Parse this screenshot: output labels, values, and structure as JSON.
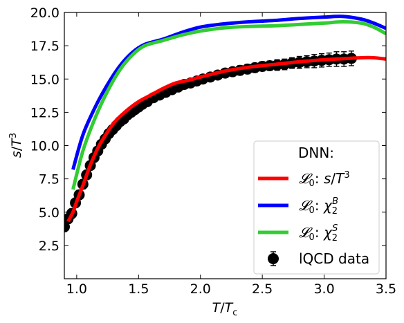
{
  "chart_data": {
    "type": "line",
    "xlabel": "T/T_c",
    "ylabel": "s/T^3",
    "xlim": [
      0.9,
      3.5
    ],
    "ylim": [
      0.0,
      20.0
    ],
    "xticks": [
      1.0,
      1.5,
      2.0,
      2.5,
      3.0,
      3.5
    ],
    "xtick_labels": [
      "1.0",
      "1.5",
      "2.0",
      "2.5",
      "3.0",
      "3.5"
    ],
    "yticks": [
      2.5,
      5.0,
      7.5,
      10.0,
      12.5,
      15.0,
      17.5,
      20.0
    ],
    "ytick_labels": [
      "2.5",
      "5.0",
      "7.5",
      "10.0",
      "12.5",
      "15.0",
      "17.5",
      "20.0"
    ],
    "grid": false,
    "legend": {
      "title": "DNN:",
      "position": "bottom-right",
      "entries": [
        {
          "label": "𝓛0: s/T3",
          "series": "L0: s/T^3"
        },
        {
          "label": "𝓛0: χ2B",
          "series": "L0: chi2^B"
        },
        {
          "label": "𝓛0: χ2S",
          "series": "L0: chi2^S"
        },
        {
          "label": "lQCD data",
          "series": "lQCD data"
        }
      ]
    },
    "series": [
      {
        "name": "L0: s/T^3",
        "color": "#ff0000",
        "x": [
          0.93,
          0.97,
          1.0,
          1.05,
          1.1,
          1.15,
          1.2,
          1.3,
          1.4,
          1.5,
          1.6,
          1.7,
          1.8,
          1.9,
          2.0,
          2.2,
          2.4,
          2.6,
          2.8,
          3.0,
          3.2,
          3.3,
          3.4,
          3.5
        ],
        "y": [
          4.3,
          5.0,
          5.8,
          7.0,
          8.3,
          9.4,
          10.3,
          11.7,
          12.6,
          13.3,
          13.8,
          14.3,
          14.7,
          14.9,
          15.15,
          15.6,
          15.9,
          16.1,
          16.3,
          16.45,
          16.55,
          16.6,
          16.6,
          16.5
        ]
      },
      {
        "name": "L0: chi2^B",
        "color": "#0000ff",
        "x": [
          0.97,
          1.05,
          1.15,
          1.25,
          1.35,
          1.45,
          1.55,
          1.7,
          1.85,
          2.0,
          2.2,
          2.4,
          2.6,
          2.8,
          3.0,
          3.15,
          3.3,
          3.4,
          3.5
        ],
        "y": [
          8.2,
          10.8,
          12.9,
          14.6,
          16.0,
          17.0,
          17.6,
          18.0,
          18.5,
          18.9,
          19.15,
          19.3,
          19.4,
          19.55,
          19.65,
          19.7,
          19.5,
          19.2,
          18.8
        ]
      },
      {
        "name": "L0: chi2^S",
        "color": "#33cc33",
        "x": [
          0.97,
          1.05,
          1.15,
          1.25,
          1.35,
          1.45,
          1.55,
          1.7,
          1.85,
          2.0,
          2.2,
          2.4,
          2.6,
          2.8,
          3.0,
          3.15,
          3.3,
          3.4,
          3.5
        ],
        "y": [
          6.7,
          9.6,
          12.1,
          14.1,
          15.7,
          16.8,
          17.5,
          17.9,
          18.3,
          18.6,
          18.85,
          18.95,
          19.0,
          19.1,
          19.2,
          19.3,
          19.2,
          18.9,
          18.4
        ]
      },
      {
        "name": "lQCD data",
        "color": "#000000",
        "x": [
          0.9,
          0.93,
          0.96,
          0.99,
          1.02,
          1.05,
          1.08,
          1.11,
          1.14,
          1.17,
          1.2,
          1.23,
          1.26,
          1.29,
          1.32,
          1.35,
          1.38,
          1.41,
          1.44,
          1.47,
          1.5,
          1.53,
          1.57,
          1.62,
          1.67,
          1.72,
          1.77,
          1.82,
          1.87,
          1.92,
          1.97,
          2.02,
          2.08,
          2.14,
          2.2,
          2.26,
          2.32,
          2.38,
          2.44,
          2.5,
          2.56,
          2.62,
          2.68,
          2.74,
          2.8,
          2.86,
          2.92,
          2.98,
          3.04,
          3.1,
          3.16,
          3.22
        ],
        "y": [
          3.9,
          4.5,
          4.9,
          5.7,
          6.3,
          7.1,
          7.8,
          8.5,
          9.1,
          9.6,
          10.1,
          10.5,
          10.9,
          11.2,
          11.5,
          11.8,
          12.0,
          12.3,
          12.5,
          12.7,
          12.9,
          13.1,
          13.3,
          13.6,
          13.8,
          14.0,
          14.2,
          14.4,
          14.6,
          14.7,
          14.85,
          15.0,
          15.15,
          15.3,
          15.45,
          15.55,
          15.65,
          15.75,
          15.85,
          15.95,
          16.0,
          16.05,
          16.1,
          16.2,
          16.25,
          16.3,
          16.35,
          16.4,
          16.45,
          16.5,
          16.5,
          16.55
        ],
        "yerr": [
          0.35,
          0.35,
          0.35,
          0.35,
          0.35,
          0.35,
          0.35,
          0.3,
          0.3,
          0.3,
          0.3,
          0.3,
          0.3,
          0.3,
          0.3,
          0.3,
          0.3,
          0.3,
          0.3,
          0.3,
          0.3,
          0.3,
          0.3,
          0.3,
          0.3,
          0.3,
          0.3,
          0.3,
          0.3,
          0.3,
          0.3,
          0.3,
          0.3,
          0.3,
          0.3,
          0.3,
          0.35,
          0.35,
          0.35,
          0.35,
          0.35,
          0.4,
          0.4,
          0.4,
          0.45,
          0.45,
          0.5,
          0.5,
          0.5,
          0.55,
          0.55,
          0.55
        ]
      }
    ]
  }
}
